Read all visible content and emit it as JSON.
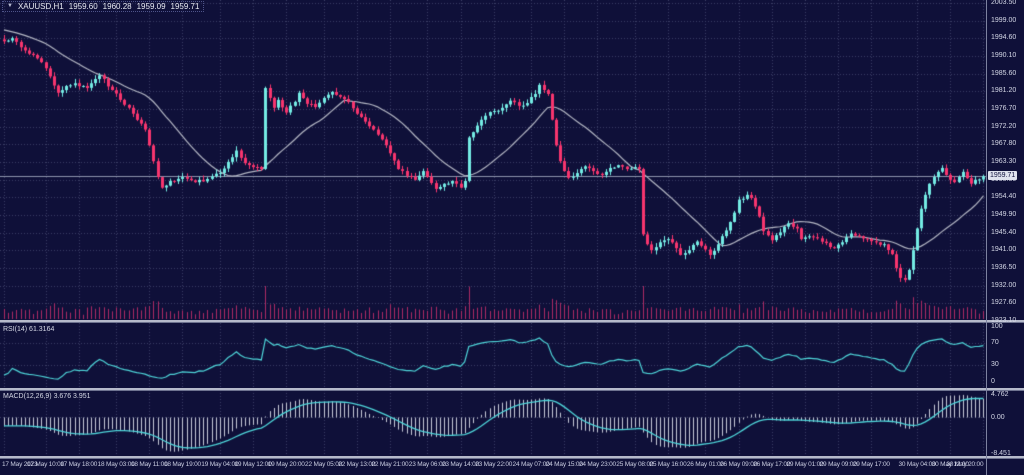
{
  "window": {
    "marker_glyph": "▼",
    "symbol_period": "XAUUSD,H1",
    "ohlc": {
      "open": "1959.60",
      "high": "1960.28",
      "low": "1959.09",
      "close": "1959.71"
    }
  },
  "panes": {
    "rsi_label": "RSI(14) 61.3164",
    "macd_label": "MACD(12,26,9) 3.676 3.951"
  },
  "price_axis": {
    "ticks": [
      "2003.50",
      "1999.00",
      "1994.60",
      "1990.10",
      "1985.60",
      "1981.20",
      "1976.70",
      "1972.20",
      "1967.80",
      "1963.30",
      "1958.80",
      "1954.40",
      "1949.90",
      "1945.40",
      "1941.00",
      "1936.50",
      "1932.00",
      "1927.60",
      "1923.10"
    ],
    "current_price": "1959.71"
  },
  "rsi_axis": {
    "ticks": [
      "100",
      "70",
      "30",
      "0"
    ]
  },
  "macd_axis": {
    "ticks": [
      "4.762",
      "0.00",
      "-8.451"
    ]
  },
  "time_axis": {
    "labels": [
      "17 May 2023",
      "17 May 10:00",
      "17 May 18:00",
      "18 May 03:00",
      "18 May 11:00",
      "18 May 19:00",
      "19 May 04:00",
      "19 May 12:00",
      "19 May 20:00",
      "22 May 05:00",
      "22 May 13:00",
      "22 May 21:00",
      "23 May 06:00",
      "23 May 14:00",
      "23 May 22:00",
      "24 May 07:00",
      "24 May 15:00",
      "24 May 23:00",
      "25 May 08:00",
      "25 May 16:00",
      "26 May 01:00",
      "26 May 09:00",
      "26 May 17:00",
      "29 May 01:00",
      "29 May 09:00",
      "29 May 17:00",
      "30 May 04:00",
      "30 May 12:00",
      "30 May 20:00"
    ]
  },
  "colors": {
    "background": "#0f1039",
    "grid": "#3b3e66",
    "candle_up": "#74ebe4",
    "candle_down": "#f7356e",
    "moving_average": "#b4b7c4",
    "volume": "#ad2a64",
    "indicator_line": "#4ed5d9",
    "macd_histogram": "#c7cad8",
    "bid_line": "#8d93ac",
    "separator": "#b6bacb",
    "axis_text": "#d4d7e6",
    "badge_bg": "#dfe2ee"
  },
  "chart_data": [
    {
      "type": "candlestick",
      "title": "XAUUSD,H1",
      "bars": 237,
      "ylim": [
        1920.85,
        2005.75
      ],
      "y_ticks": [
        2003.5,
        1999.0,
        1994.6,
        1990.1,
        1985.6,
        1981.2,
        1976.7,
        1972.2,
        1967.8,
        1963.3,
        1958.8,
        1954.4,
        1949.9,
        1945.4,
        1941.0,
        1936.5,
        1932.0,
        1927.6,
        1923.1
      ],
      "x_tick_bar_indices": [
        0,
        10,
        18,
        27,
        35,
        43,
        52,
        60,
        68,
        77,
        85,
        93,
        102,
        110,
        118,
        127,
        135,
        143,
        152,
        160,
        169,
        177,
        185,
        193,
        201,
        209,
        220,
        228,
        236
      ],
      "current_price": 1959.71,
      "last_bar_ohlc": [
        1959.6,
        1960.28,
        1959.09,
        1959.71
      ],
      "price_anchors": [
        [
          0,
          1993.8
        ],
        [
          2,
          1994.6
        ],
        [
          5,
          1991.5
        ],
        [
          8,
          1989.5
        ],
        [
          10,
          1987.0
        ],
        [
          13,
          1980.8
        ],
        [
          15,
          1982.5
        ],
        [
          17,
          1983.2
        ],
        [
          20,
          1982.0
        ],
        [
          23,
          1985.2
        ],
        [
          26,
          1981.5
        ],
        [
          28,
          1979.0
        ],
        [
          31,
          1975.5
        ],
        [
          33,
          1973.0
        ],
        [
          34,
          1971.5
        ],
        [
          35,
          1967.5
        ],
        [
          36,
          1963.5
        ],
        [
          37,
          1959.5
        ],
        [
          38,
          1956.8
        ],
        [
          40,
          1958.5
        ],
        [
          43,
          1959.5
        ],
        [
          46,
          1958.2
        ],
        [
          49,
          1959.0
        ],
        [
          52,
          1960.5
        ],
        [
          55,
          1964.5
        ],
        [
          56,
          1966.2
        ],
        [
          58,
          1963.0
        ],
        [
          60,
          1962.0
        ],
        [
          62,
          1961.5
        ],
        [
          63,
          1982.0
        ],
        [
          64,
          1979.5
        ],
        [
          65,
          1977.0
        ],
        [
          66,
          1979.0
        ],
        [
          68,
          1975.8
        ],
        [
          70,
          1978.5
        ],
        [
          71,
          1980.8
        ],
        [
          73,
          1978.0
        ],
        [
          75,
          1977.2
        ],
        [
          77,
          1979.5
        ],
        [
          79,
          1981.0
        ],
        [
          81,
          1979.8
        ],
        [
          83,
          1978.5
        ],
        [
          85,
          1975.5
        ],
        [
          87,
          1973.5
        ],
        [
          89,
          1971.5
        ],
        [
          91,
          1969.0
        ],
        [
          93,
          1965.5
        ],
        [
          95,
          1961.5
        ],
        [
          97,
          1959.8
        ],
        [
          99,
          1958.8
        ],
        [
          101,
          1961.0
        ],
        [
          103,
          1958.0
        ],
        [
          104,
          1956.5
        ],
        [
          106,
          1957.8
        ],
        [
          108,
          1958.5
        ],
        [
          110,
          1956.8
        ],
        [
          111,
          1958.5
        ],
        [
          112,
          1969.5
        ],
        [
          114,
          1972.5
        ],
        [
          116,
          1975.0
        ],
        [
          118,
          1976.2
        ],
        [
          120,
          1977.0
        ],
        [
          122,
          1978.8
        ],
        [
          124,
          1977.5
        ],
        [
          126,
          1978.2
        ],
        [
          128,
          1980.5
        ],
        [
          129,
          1982.8
        ],
        [
          130,
          1981.5
        ],
        [
          131,
          1980.5
        ],
        [
          132,
          1974.0
        ],
        [
          133,
          1967.5
        ],
        [
          134,
          1963.5
        ],
        [
          135,
          1961.0
        ],
        [
          136,
          1959.3
        ],
        [
          138,
          1960.5
        ],
        [
          140,
          1962.2
        ],
        [
          142,
          1961.0
        ],
        [
          144,
          1960.0
        ],
        [
          146,
          1961.8
        ],
        [
          148,
          1962.5
        ],
        [
          150,
          1961.5
        ],
        [
          152,
          1962.0
        ],
        [
          153,
          1961.5
        ],
        [
          154,
          1945.0
        ],
        [
          155,
          1942.5
        ],
        [
          156,
          1941.0
        ],
        [
          158,
          1943.0
        ],
        [
          160,
          1943.8
        ],
        [
          162,
          1941.5
        ],
        [
          163,
          1939.8
        ],
        [
          165,
          1941.0
        ],
        [
          167,
          1943.2
        ],
        [
          169,
          1941.2
        ],
        [
          170,
          1939.8
        ],
        [
          172,
          1942.5
        ],
        [
          174,
          1946.0
        ],
        [
          176,
          1950.5
        ],
        [
          177,
          1953.8
        ],
        [
          179,
          1955.0
        ],
        [
          180,
          1954.2
        ],
        [
          182,
          1949.5
        ],
        [
          183,
          1945.8
        ],
        [
          185,
          1943.5
        ],
        [
          187,
          1945.5
        ],
        [
          189,
          1947.8
        ],
        [
          191,
          1946.5
        ],
        [
          192,
          1943.8
        ],
        [
          194,
          1944.5
        ],
        [
          196,
          1944.0
        ],
        [
          198,
          1942.8
        ],
        [
          200,
          1941.5
        ],
        [
          202,
          1943.0
        ],
        [
          204,
          1945.2
        ],
        [
          206,
          1944.5
        ],
        [
          208,
          1943.8
        ],
        [
          210,
          1943.0
        ],
        [
          212,
          1942.5
        ],
        [
          214,
          1940.0
        ],
        [
          215,
          1936.5
        ],
        [
          216,
          1934.0
        ],
        [
          217,
          1933.5
        ],
        [
          218,
          1936.0
        ],
        [
          219,
          1941.0
        ],
        [
          220,
          1946.5
        ],
        [
          221,
          1951.5
        ],
        [
          222,
          1955.0
        ],
        [
          223,
          1957.8
        ],
        [
          224,
          1959.5
        ],
        [
          225,
          1960.8
        ],
        [
          226,
          1961.8
        ],
        [
          227,
          1960.0
        ],
        [
          228,
          1958.8
        ],
        [
          229,
          1958.2
        ],
        [
          230,
          1959.5
        ],
        [
          231,
          1960.8
        ],
        [
          232,
          1959.2
        ],
        [
          233,
          1957.8
        ],
        [
          234,
          1958.8
        ],
        [
          235,
          1958.9
        ],
        [
          236,
          1959.71
        ]
      ],
      "overlays": {
        "moving_average_period": 20,
        "volume_histogram": true,
        "bid_line_price": 1959.71
      }
    },
    {
      "type": "line",
      "name": "RSI(14)",
      "current_value": 61.3164,
      "range": [
        0,
        100
      ],
      "levels": [
        70,
        30
      ],
      "derived_from": "candlestick_closes"
    },
    {
      "type": "macd",
      "name": "MACD(12,26,9)",
      "macd_value": 3.676,
      "signal_value": 3.951,
      "range": [
        -8.451,
        4.762
      ],
      "zero_label": "0.00",
      "derived_from": "candlestick_closes"
    }
  ]
}
